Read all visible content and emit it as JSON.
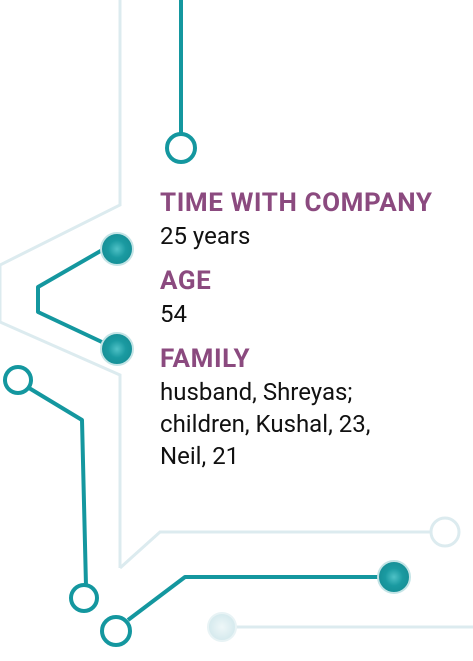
{
  "profile": {
    "time_with_company": {
      "label": "TIME WITH COMPANY",
      "value": "25 years"
    },
    "age": {
      "label": "AGE",
      "value": "54"
    },
    "family": {
      "label": "FAMILY",
      "value": "husband, Shreyas;\nchildren, Kushal, 23,\nNeil, 21"
    }
  },
  "colors": {
    "teal": "#14979f",
    "light_trace": "#dcebef",
    "label_purple": "#8b4a7f",
    "text": "#111111"
  }
}
